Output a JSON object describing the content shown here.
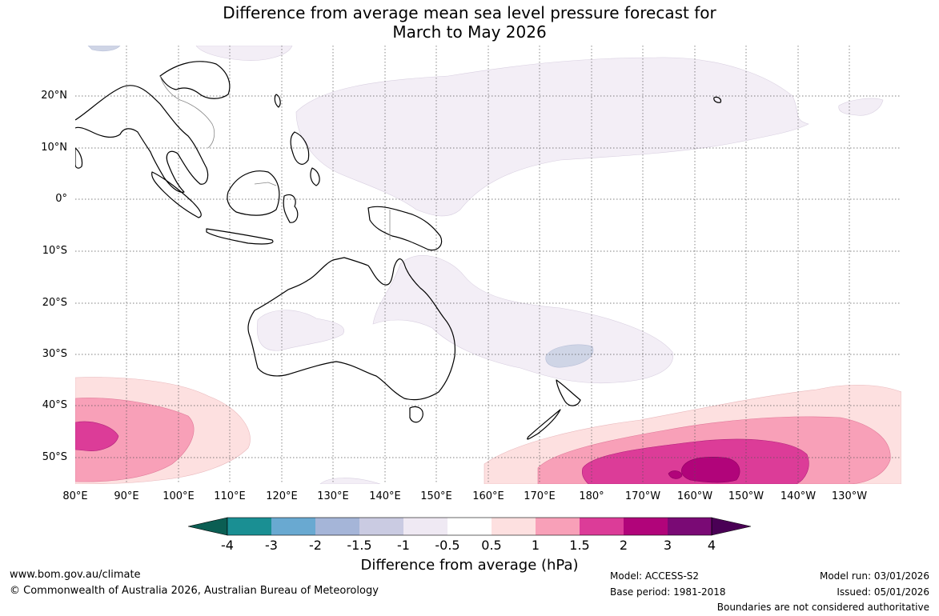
{
  "title": {
    "line1": "Difference from average mean sea level pressure forecast for",
    "line2": "March to May 2026"
  },
  "map": {
    "lat_labels": [
      "20°N",
      "10°N",
      "0°",
      "10°S",
      "20°S",
      "30°S",
      "40°S",
      "50°S"
    ],
    "lon_labels": [
      "80°E",
      "90°E",
      "100°E",
      "110°E",
      "120°E",
      "130°E",
      "140°E",
      "150°E",
      "160°E",
      "170°E",
      "180°",
      "170°W",
      "160°W",
      "150°W",
      "140°W",
      "130°W"
    ]
  },
  "legend": {
    "title": "Difference from average (hPa)",
    "ticks": [
      "-4",
      "-3",
      "-2",
      "-1.5",
      "-1",
      "-0.5",
      "0.5",
      "1",
      "1.5",
      "2",
      "3",
      "4"
    ],
    "colors": {
      "below_min": "#0b5e53",
      "bins": [
        "#1a8f93",
        "#69a9d1",
        "#a5b5d8",
        "#cacbe2",
        "#efe9f3",
        "#ffffff",
        "#fde0e0",
        "#f8a0b8",
        "#dc3c98",
        "#b1047a",
        "#7a0a75"
      ],
      "above_max": "#4a0055"
    }
  },
  "footer": {
    "website": "www.bom.gov.au/climate",
    "copyright": "© Commonwealth of Australia 2026, Australian Bureau of Meteorology",
    "model": "Model: ACCESS-S2",
    "base_period": "Base period: 1981-2018",
    "model_run": "Model run: 03/01/2026",
    "issued": "Issued: 05/01/2026",
    "disclaimer": "Boundaries are not considered authoritative"
  }
}
